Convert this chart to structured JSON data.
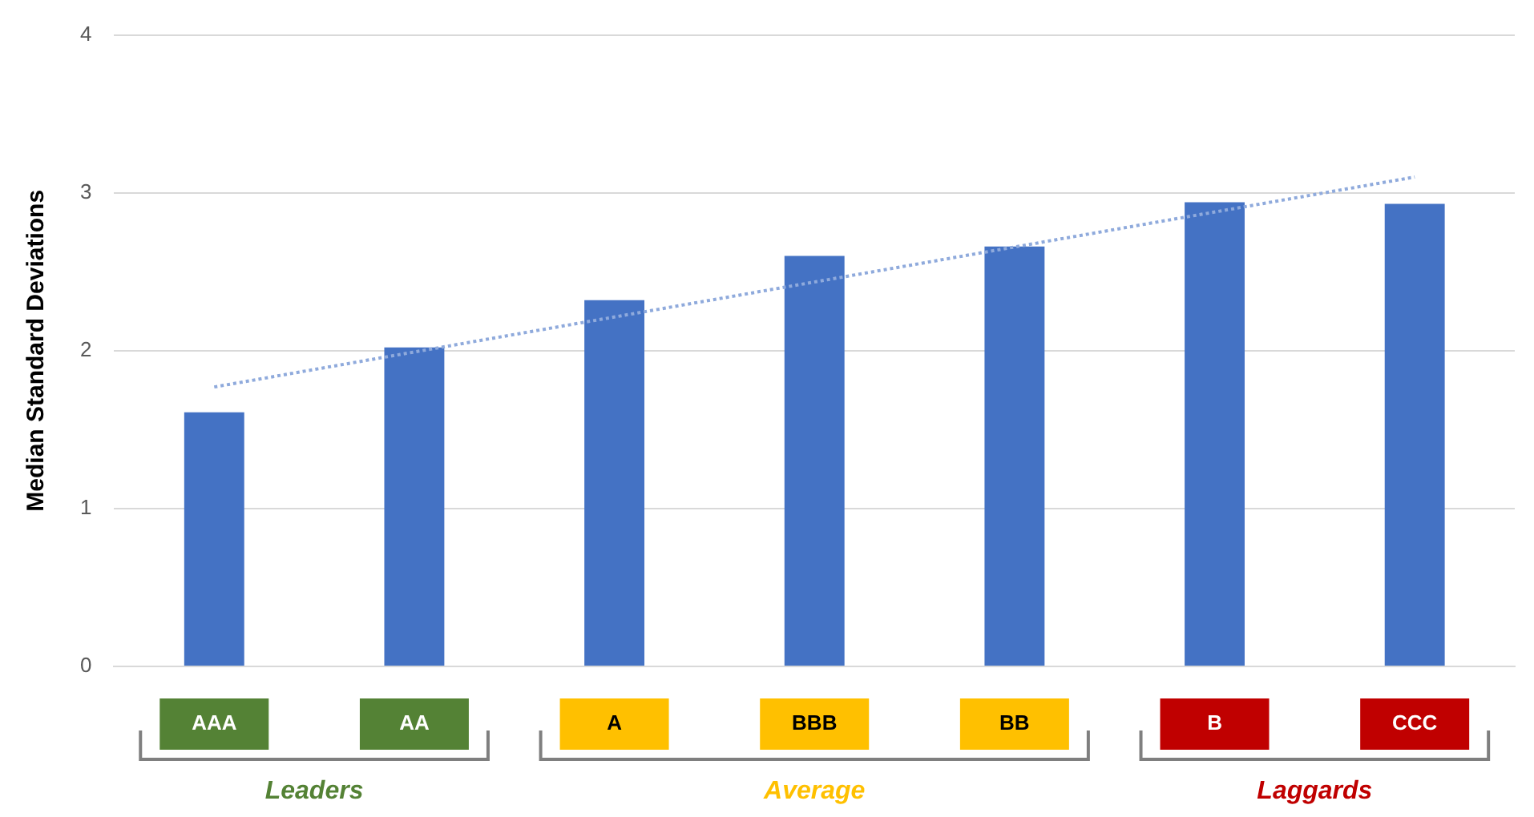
{
  "chart_data": {
    "type": "bar",
    "ylabel": "Median Standard Deviations",
    "categories": [
      "AAA",
      "AA",
      "A",
      "BBB",
      "BB",
      "B",
      "CCC"
    ],
    "series": [
      {
        "color": "#4472c4",
        "values": [
          1.61,
          2.02,
          2.32,
          2.6,
          2.66,
          2.94,
          2.93
        ]
      },
      {
        "type": "line",
        "color": "#8faadc",
        "x": [
          "AAA",
          "CCC"
        ],
        "values": [
          1.77,
          3.1
        ],
        "line_style": "dotted",
        "marker": "none"
      }
    ],
    "ylim": [
      0,
      4
    ],
    "yticks": [
      0,
      1,
      2,
      3,
      4
    ],
    "grid": "y",
    "legend": false,
    "annotations": [
      "Leaders",
      "Average",
      "Laggards"
    ]
  }
}
